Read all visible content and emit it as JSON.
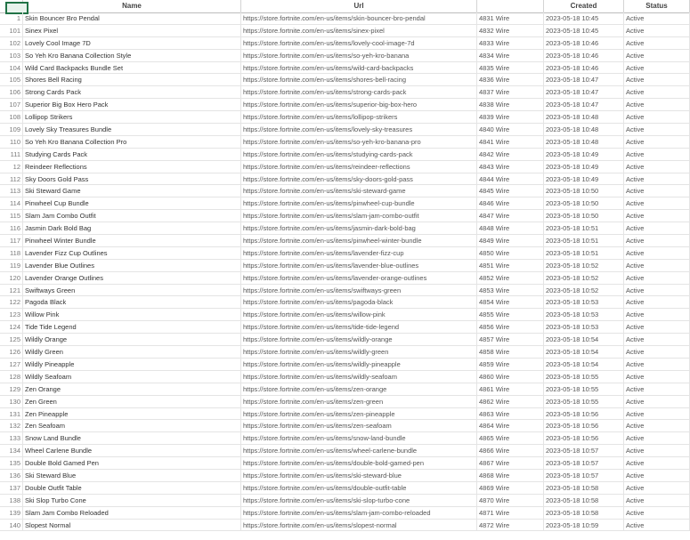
{
  "header": {
    "gutter": "",
    "name": "Name",
    "url": "Url",
    "id": "",
    "date": "Created",
    "extra": "Status"
  },
  "rows": [
    {
      "num": "1",
      "name": "Skin Bouncer Bro Pendal",
      "url": "https://store.fortnite.com/en-us/items/skin-bouncer-bro-pendal",
      "id": "4831 Wire",
      "date": "2023-05-18 10:45",
      "extra": "Active"
    },
    {
      "num": "101",
      "name": "Sinex Pixel",
      "url": "https://store.fortnite.com/en-us/items/sinex-pixel",
      "id": "4832 Wire",
      "date": "2023-05-18 10:45",
      "extra": "Active"
    },
    {
      "num": "102",
      "name": "Lovely Cool Image 7D",
      "url": "https://store.fortnite.com/en-us/items/lovely-cool-image-7d",
      "id": "4833 Wire",
      "date": "2023-05-18 10:46",
      "extra": "Active"
    },
    {
      "num": "103",
      "name": "So Yeh Kro Banana Collection Style",
      "url": "https://store.fortnite.com/en-us/items/so-yeh-kro-banana",
      "id": "4834 Wire",
      "date": "2023-05-18 10:46",
      "extra": "Active"
    },
    {
      "num": "104",
      "name": "Wild Card Backpacks Bundle Set",
      "url": "https://store.fortnite.com/en-us/items/wild-card-backpacks",
      "id": "4835 Wire",
      "date": "2023-05-18 10:46",
      "extra": "Active"
    },
    {
      "num": "105",
      "name": "Shores Bell Racing",
      "url": "https://store.fortnite.com/en-us/items/shores-bell-racing",
      "id": "4836 Wire",
      "date": "2023-05-18 10:47",
      "extra": "Active"
    },
    {
      "num": "106",
      "name": "Strong Cards Pack",
      "url": "https://store.fortnite.com/en-us/items/strong-cards-pack",
      "id": "4837 Wire",
      "date": "2023-05-18 10:47",
      "extra": "Active"
    },
    {
      "num": "107",
      "name": "Superior Big Box Hero Pack",
      "url": "https://store.fortnite.com/en-us/items/superior-big-box-hero",
      "id": "4838 Wire",
      "date": "2023-05-18 10:47",
      "extra": "Active"
    },
    {
      "num": "108",
      "name": "Lollipop Strikers",
      "url": "https://store.fortnite.com/en-us/items/lollipop-strikers",
      "id": "4839 Wire",
      "date": "2023-05-18 10:48",
      "extra": "Active"
    },
    {
      "num": "109",
      "name": "Lovely Sky Treasures Bundle",
      "url": "https://store.fortnite.com/en-us/items/lovely-sky-treasures",
      "id": "4840 Wire",
      "date": "2023-05-18 10:48",
      "extra": "Active"
    },
    {
      "num": "110",
      "name": "So Yeh Kro Banana Collection Pro",
      "url": "https://store.fortnite.com/en-us/items/so-yeh-kro-banana-pro",
      "id": "4841 Wire",
      "date": "2023-05-18 10:48",
      "extra": "Active"
    },
    {
      "num": "111",
      "name": "Studying Cards Pack",
      "url": "https://store.fortnite.com/en-us/items/studying-cards-pack",
      "id": "4842 Wire",
      "date": "2023-05-18 10:49",
      "extra": "Active"
    },
    {
      "num": "12",
      "name": "Reindeer Reflections",
      "url": "https://store.fortnite.com/en-us/items/reindeer-reflections",
      "id": "4843 Wire",
      "date": "2023-05-18 10:49",
      "extra": "Active"
    },
    {
      "num": "112",
      "name": "Sky Doors Gold Pass",
      "url": "https://store.fortnite.com/en-us/items/sky-doors-gold-pass",
      "id": "4844 Wire",
      "date": "2023-05-18 10:49",
      "extra": "Active"
    },
    {
      "num": "113",
      "name": "Ski Steward Game",
      "url": "https://store.fortnite.com/en-us/items/ski-steward-game",
      "id": "4845 Wire",
      "date": "2023-05-18 10:50",
      "extra": "Active"
    },
    {
      "num": "114",
      "name": "Pinwheel Cup Bundle",
      "url": "https://store.fortnite.com/en-us/items/pinwheel-cup-bundle",
      "id": "4846 Wire",
      "date": "2023-05-18 10:50",
      "extra": "Active"
    },
    {
      "num": "115",
      "name": "Slam Jam Combo Outfit",
      "url": "https://store.fortnite.com/en-us/items/slam-jam-combo-outfit",
      "id": "4847 Wire",
      "date": "2023-05-18 10:50",
      "extra": "Active"
    },
    {
      "num": "116",
      "name": "Jasmin Dark Bold Bag",
      "url": "https://store.fortnite.com/en-us/items/jasmin-dark-bold-bag",
      "id": "4848 Wire",
      "date": "2023-05-18 10:51",
      "extra": "Active"
    },
    {
      "num": "117",
      "name": "Pinwheel Winter Bundle",
      "url": "https://store.fortnite.com/en-us/items/pinwheel-winter-bundle",
      "id": "4849 Wire",
      "date": "2023-05-18 10:51",
      "extra": "Active"
    },
    {
      "num": "118",
      "name": "Lavender Fizz Cup Outlines",
      "url": "https://store.fortnite.com/en-us/items/lavender-fizz-cup",
      "id": "4850 Wire",
      "date": "2023-05-18 10:51",
      "extra": "Active"
    },
    {
      "num": "119",
      "name": "Lavender Blue Outlines",
      "url": "https://store.fortnite.com/en-us/items/lavender-blue-outlines",
      "id": "4851 Wire",
      "date": "2023-05-18 10:52",
      "extra": "Active"
    },
    {
      "num": "120",
      "name": "Lavender Orange Outlines",
      "url": "https://store.fortnite.com/en-us/items/lavender-orange-outlines",
      "id": "4852 Wire",
      "date": "2023-05-18 10:52",
      "extra": "Active"
    },
    {
      "num": "121",
      "name": "Swiftways Green",
      "url": "https://store.fortnite.com/en-us/items/swiftways-green",
      "id": "4853 Wire",
      "date": "2023-05-18 10:52",
      "extra": "Active"
    },
    {
      "num": "122",
      "name": "Pagoda Black",
      "url": "https://store.fortnite.com/en-us/items/pagoda-black",
      "id": "4854 Wire",
      "date": "2023-05-18 10:53",
      "extra": "Active"
    },
    {
      "num": "123",
      "name": "Willow Pink",
      "url": "https://store.fortnite.com/en-us/items/willow-pink",
      "id": "4855 Wire",
      "date": "2023-05-18 10:53",
      "extra": "Active"
    },
    {
      "num": "124",
      "name": "Tide Tide Legend",
      "url": "https://store.fortnite.com/en-us/items/tide-tide-legend",
      "id": "4856 Wire",
      "date": "2023-05-18 10:53",
      "extra": "Active"
    },
    {
      "num": "125",
      "name": "Wildly Orange",
      "url": "https://store.fortnite.com/en-us/items/wildly-orange",
      "id": "4857 Wire",
      "date": "2023-05-18 10:54",
      "extra": "Active"
    },
    {
      "num": "126",
      "name": "Wildly Green",
      "url": "https://store.fortnite.com/en-us/items/wildly-green",
      "id": "4858 Wire",
      "date": "2023-05-18 10:54",
      "extra": "Active"
    },
    {
      "num": "127",
      "name": "Wildly Pineapple",
      "url": "https://store.fortnite.com/en-us/items/wildly-pineapple",
      "id": "4859 Wire",
      "date": "2023-05-18 10:54",
      "extra": "Active"
    },
    {
      "num": "128",
      "name": "Wildly Seafoam",
      "url": "https://store.fortnite.com/en-us/items/wildly-seafoam",
      "id": "4860 Wire",
      "date": "2023-05-18 10:55",
      "extra": "Active"
    },
    {
      "num": "129",
      "name": "Zen Orange",
      "url": "https://store.fortnite.com/en-us/items/zen-orange",
      "id": "4861 Wire",
      "date": "2023-05-18 10:55",
      "extra": "Active"
    },
    {
      "num": "130",
      "name": "Zen Green",
      "url": "https://store.fortnite.com/en-us/items/zen-green",
      "id": "4862 Wire",
      "date": "2023-05-18 10:55",
      "extra": "Active"
    },
    {
      "num": "131",
      "name": "Zen Pineapple",
      "url": "https://store.fortnite.com/en-us/items/zen-pineapple",
      "id": "4863 Wire",
      "date": "2023-05-18 10:56",
      "extra": "Active"
    },
    {
      "num": "132",
      "name": "Zen Seafoam",
      "url": "https://store.fortnite.com/en-us/items/zen-seafoam",
      "id": "4864 Wire",
      "date": "2023-05-18 10:56",
      "extra": "Active"
    },
    {
      "num": "133",
      "name": "Snow Land Bundle",
      "url": "https://store.fortnite.com/en-us/items/snow-land-bundle",
      "id": "4865 Wire",
      "date": "2023-05-18 10:56",
      "extra": "Active"
    },
    {
      "num": "134",
      "name": "Wheel Carlene Bundle",
      "url": "https://store.fortnite.com/en-us/items/wheel-carlene-bundle",
      "id": "4866 Wire",
      "date": "2023-05-18 10:57",
      "extra": "Active"
    },
    {
      "num": "135",
      "name": "Double Bold Gamed Pen",
      "url": "https://store.fortnite.com/en-us/items/double-bold-gamed-pen",
      "id": "4867 Wire",
      "date": "2023-05-18 10:57",
      "extra": "Active"
    },
    {
      "num": "136",
      "name": "Ski Steward Blue",
      "url": "https://store.fortnite.com/en-us/items/ski-steward-blue",
      "id": "4868 Wire",
      "date": "2023-05-18 10:57",
      "extra": "Active"
    },
    {
      "num": "137",
      "name": "Double Outfit Table",
      "url": "https://store.fortnite.com/en-us/items/double-outfit-table",
      "id": "4869 Wire",
      "date": "2023-05-18 10:58",
      "extra": "Active"
    },
    {
      "num": "138",
      "name": "Ski Slop Turbo Cone",
      "url": "https://store.fortnite.com/en-us/items/ski-slop-turbo-cone",
      "id": "4870 Wire",
      "date": "2023-05-18 10:58",
      "extra": "Active"
    },
    {
      "num": "139",
      "name": "Slam Jam Combo Reloaded",
      "url": "https://store.fortnite.com/en-us/items/slam-jam-combo-reloaded",
      "id": "4871 Wire",
      "date": "2023-05-18 10:58",
      "extra": "Active"
    },
    {
      "num": "140",
      "name": "Slopest Normal",
      "url": "https://store.fortnite.com/en-us/items/slopest-normal",
      "id": "4872 Wire",
      "date": "2023-05-18 10:59",
      "extra": "Active"
    }
  ]
}
